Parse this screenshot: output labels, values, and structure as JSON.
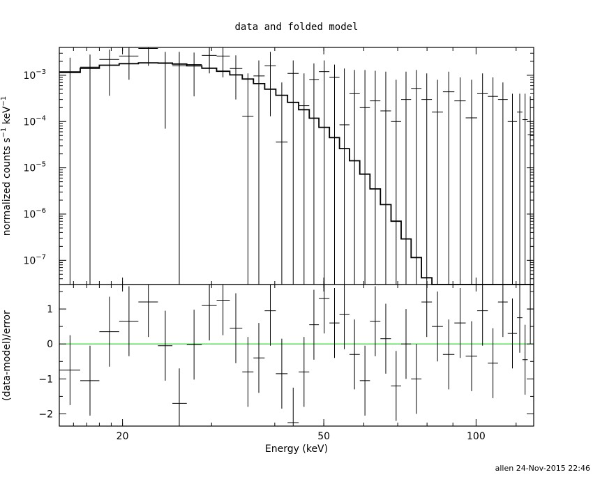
{
  "chart_data": [
    {
      "type": "scatter",
      "panel": "top",
      "title": "data and folded model",
      "ylabel": "normalized counts s^-1 keV^-1",
      "xlabel": "",
      "xscale": "log",
      "yscale": "log",
      "xlim": [
        15,
        130
      ],
      "ylim": [
        3e-08,
        0.004
      ],
      "y_ticks": [
        {
          "value": 1e-07,
          "label": "10",
          "exp": "-7"
        },
        {
          "value": 1e-06,
          "label": "10",
          "exp": "-6"
        },
        {
          "value": 1e-05,
          "label": "10",
          "exp": "-5"
        },
        {
          "value": 0.0001,
          "label": "10",
          "exp": "-4"
        },
        {
          "value": 0.001,
          "label": "10",
          "exp": "-3"
        }
      ],
      "x_ticks": [
        20,
        50,
        100
      ],
      "series": [
        {
          "kind": "data-with-errors",
          "color": "#000000",
          "points": [
            {
              "x": 15.75,
              "xlo": 15.0,
              "xhi": 16.5,
              "y": 0.0012,
              "ylo": 3e-08,
              "yhi": 0.0024
            },
            {
              "x": 17.25,
              "xlo": 16.5,
              "xhi": 18.0,
              "y": 0.0015,
              "ylo": 3e-08,
              "yhi": 0.0028
            },
            {
              "x": 18.85,
              "xlo": 18.0,
              "xhi": 19.7,
              "y": 0.0022,
              "ylo": 0.00036,
              "yhi": 0.0036
            },
            {
              "x": 20.6,
              "xlo": 19.7,
              "xhi": 21.5,
              "y": 0.0026,
              "ylo": 0.0008,
              "yhi": 0.004
            },
            {
              "x": 22.5,
              "xlo": 21.5,
              "xhi": 23.5,
              "y": 0.0038,
              "ylo": 0.0016,
              "yhi": 0.006
            },
            {
              "x": 24.3,
              "xlo": 23.5,
              "xhi": 25.1,
              "y": 0.0018,
              "ylo": 7e-05,
              "yhi": 0.0032
            },
            {
              "x": 25.9,
              "xlo": 25.1,
              "xhi": 26.8,
              "y": 0.0016,
              "ylo": 3e-08,
              "yhi": 0.0032
            },
            {
              "x": 27.7,
              "xlo": 26.8,
              "xhi": 28.7,
              "y": 0.0017,
              "ylo": 0.00035,
              "yhi": 0.0031
            },
            {
              "x": 29.7,
              "xlo": 28.7,
              "xhi": 30.7,
              "y": 0.0027,
              "ylo": 0.0011,
              "yhi": 0.0045
            },
            {
              "x": 31.6,
              "xlo": 30.7,
              "xhi": 32.6,
              "y": 0.0026,
              "ylo": 0.0009,
              "yhi": 0.0045
            },
            {
              "x": 33.5,
              "xlo": 32.6,
              "xhi": 34.5,
              "y": 0.0014,
              "ylo": 0.0003,
              "yhi": 0.0027
            },
            {
              "x": 35.4,
              "xlo": 34.5,
              "xhi": 36.3,
              "y": 0.00013,
              "ylo": 3e-08,
              "yhi": 0.0011
            },
            {
              "x": 37.2,
              "xlo": 36.3,
              "xhi": 38.2,
              "y": 0.00097,
              "ylo": 3e-08,
              "yhi": 0.0021
            },
            {
              "x": 39.2,
              "xlo": 38.2,
              "xhi": 40.2,
              "y": 0.0016,
              "ylo": 0.00013,
              "yhi": 0.0032
            },
            {
              "x": 41.3,
              "xlo": 40.2,
              "xhi": 42.4,
              "y": 3.6e-05,
              "ylo": 3e-08,
              "yhi": 0.0007
            },
            {
              "x": 43.5,
              "xlo": 42.4,
              "xhi": 44.6,
              "y": 0.0011,
              "ylo": 3e-08,
              "yhi": 0.0021
            },
            {
              "x": 45.7,
              "xlo": 44.6,
              "xhi": 46.8,
              "y": 0.00022,
              "ylo": 3e-08,
              "yhi": 0.0011
            },
            {
              "x": 47.8,
              "xlo": 46.8,
              "xhi": 48.9,
              "y": 0.0008,
              "ylo": 3e-08,
              "yhi": 0.0018
            },
            {
              "x": 50.1,
              "xlo": 48.9,
              "xhi": 51.3,
              "y": 0.0012,
              "ylo": 3e-08,
              "yhi": 0.0021
            },
            {
              "x": 52.5,
              "xlo": 51.3,
              "xhi": 53.7,
              "y": 0.0009,
              "ylo": 3e-08,
              "yhi": 0.0017
            },
            {
              "x": 54.9,
              "xlo": 53.7,
              "xhi": 56.2,
              "y": 8.5e-05,
              "ylo": 3e-08,
              "yhi": 0.0014
            },
            {
              "x": 57.5,
              "xlo": 56.2,
              "xhi": 58.9,
              "y": 0.0004,
              "ylo": 3e-08,
              "yhi": 0.0013
            },
            {
              "x": 60.3,
              "xlo": 58.9,
              "xhi": 61.7,
              "y": 0.0002,
              "ylo": 3e-08,
              "yhi": 0.0013
            },
            {
              "x": 63.2,
              "xlo": 61.7,
              "xhi": 64.7,
              "y": 0.00028,
              "ylo": 3e-08,
              "yhi": 0.00125
            },
            {
              "x": 66.3,
              "xlo": 64.7,
              "xhi": 67.9,
              "y": 0.00017,
              "ylo": 3e-08,
              "yhi": 0.0012
            },
            {
              "x": 69.5,
              "xlo": 67.9,
              "xhi": 71.1,
              "y": 0.0001,
              "ylo": 3e-08,
              "yhi": 0.0008
            },
            {
              "x": 72.7,
              "xlo": 71.1,
              "xhi": 74.4,
              "y": 0.0003,
              "ylo": 3e-08,
              "yhi": 0.0012
            },
            {
              "x": 76.2,
              "xlo": 74.4,
              "xhi": 78.0,
              "y": 0.00052,
              "ylo": 3e-08,
              "yhi": 0.0013
            },
            {
              "x": 79.9,
              "xlo": 78.0,
              "xhi": 81.8,
              "y": 0.0003,
              "ylo": 3e-08,
              "yhi": 0.0011
            },
            {
              "x": 83.9,
              "xlo": 81.8,
              "xhi": 86.0,
              "y": 0.00016,
              "ylo": 3e-08,
              "yhi": 0.0008
            },
            {
              "x": 88.3,
              "xlo": 86.0,
              "xhi": 90.6,
              "y": 0.00044,
              "ylo": 3e-08,
              "yhi": 0.0012
            },
            {
              "x": 93.0,
              "xlo": 90.6,
              "xhi": 95.4,
              "y": 0.00028,
              "ylo": 3e-08,
              "yhi": 0.0009
            },
            {
              "x": 98.0,
              "xlo": 95.4,
              "xhi": 100.5,
              "y": 0.00012,
              "ylo": 3e-08,
              "yhi": 0.0008
            },
            {
              "x": 103.0,
              "xlo": 100.5,
              "xhi": 105.5,
              "y": 0.0004,
              "ylo": 3e-08,
              "yhi": 0.0011
            },
            {
              "x": 108.0,
              "xlo": 105.5,
              "xhi": 110.5,
              "y": 0.00035,
              "ylo": 3e-08,
              "yhi": 0.0009
            },
            {
              "x": 113.0,
              "xlo": 110.5,
              "xhi": 115.5,
              "y": 0.0003,
              "ylo": 3e-08,
              "yhi": 0.0007
            },
            {
              "x": 118.0,
              "xlo": 115.5,
              "xhi": 120.5,
              "y": 0.0001,
              "ylo": 3e-08,
              "yhi": 0.0004
            },
            {
              "x": 122.0,
              "xlo": 120.5,
              "xhi": 123.5,
              "y": 0.00016,
              "ylo": 3e-08,
              "yhi": 0.0004
            },
            {
              "x": 125.0,
              "xlo": 123.5,
              "xhi": 126.5,
              "y": 0.00011,
              "ylo": 3e-08,
              "yhi": 0.0004
            },
            {
              "x": 128.0,
              "xlo": 126.5,
              "xhi": 130.0,
              "y": 5.2e-05,
              "ylo": 3e-08,
              "yhi": 0.00035
            }
          ]
        },
        {
          "kind": "model-step",
          "color": "#000000",
          "edges": [
            15.0,
            16.5,
            18.0,
            19.7,
            21.5,
            23.5,
            25.1,
            26.8,
            28.7,
            30.7,
            32.6,
            34.5,
            36.3,
            38.2,
            40.2,
            42.4,
            44.6,
            46.8,
            48.9,
            51.3,
            53.7,
            56.2,
            58.9,
            61.7,
            64.7,
            67.9,
            71.1,
            74.4,
            78.0,
            81.8,
            86.0,
            90.6,
            95.4,
            100.5,
            105.5,
            110.5,
            115.5,
            120.5,
            123.5,
            126.5,
            130.0
          ],
          "values": [
            0.00115,
            0.00142,
            0.00165,
            0.00178,
            0.00186,
            0.00184,
            0.00175,
            0.0016,
            0.00142,
            0.00122,
            0.00102,
            0.00083,
            0.00066,
            0.0005,
            0.00037,
            0.00026,
            0.00018,
            0.000118,
            7.5e-05,
            4.5e-05,
            2.6e-05,
            1.42e-05,
            7.3e-06,
            3.5e-06,
            1.6e-06,
            7e-07,
            2.9e-07,
            1.15e-07,
            4.2e-08,
            3e-08,
            3e-08,
            3e-08,
            3e-08,
            3e-08,
            3e-08,
            3e-08,
            3e-08,
            3e-08,
            3e-08,
            3e-08
          ]
        }
      ]
    },
    {
      "type": "scatter",
      "panel": "bottom",
      "ylabel": "(data-model)/error",
      "xlabel": "Energy (keV)",
      "xscale": "log",
      "xlim": [
        15,
        130
      ],
      "ylim": [
        -2.35,
        1.7
      ],
      "y_ticks": [
        -2,
        -1,
        0,
        1
      ],
      "x_ticks": [
        20,
        50,
        100
      ],
      "zero_line_color": "#22cc22",
      "series": [
        {
          "kind": "residuals",
          "color": "#000000",
          "points": [
            {
              "x": 15.75,
              "xlo": 15.0,
              "xhi": 16.5,
              "y": -0.75,
              "ylo": -1.75,
              "yhi": 0.25
            },
            {
              "x": 17.25,
              "xlo": 16.5,
              "xhi": 18.0,
              "y": -1.05,
              "ylo": -2.05,
              "yhi": -0.05
            },
            {
              "x": 18.85,
              "xlo": 18.0,
              "xhi": 19.7,
              "y": 0.35,
              "ylo": -0.65,
              "yhi": 1.35
            },
            {
              "x": 20.6,
              "xlo": 19.7,
              "xhi": 21.5,
              "y": 0.65,
              "ylo": -0.35,
              "yhi": 1.65
            },
            {
              "x": 22.5,
              "xlo": 21.5,
              "xhi": 23.5,
              "y": 1.2,
              "ylo": 0.2,
              "yhi": 2.2
            },
            {
              "x": 24.3,
              "xlo": 23.5,
              "xhi": 25.1,
              "y": -0.05,
              "ylo": -1.05,
              "yhi": 0.95
            },
            {
              "x": 25.9,
              "xlo": 25.1,
              "xhi": 26.8,
              "y": -1.7,
              "ylo": -2.7,
              "yhi": -0.7
            },
            {
              "x": 27.7,
              "xlo": 26.8,
              "xhi": 28.7,
              "y": -0.02,
              "ylo": -1.02,
              "yhi": 0.98
            },
            {
              "x": 29.7,
              "xlo": 28.7,
              "xhi": 30.7,
              "y": 1.1,
              "ylo": 0.1,
              "yhi": 2.1
            },
            {
              "x": 31.6,
              "xlo": 30.7,
              "xhi": 32.6,
              "y": 1.25,
              "ylo": 0.25,
              "yhi": 2.25
            },
            {
              "x": 33.5,
              "xlo": 32.6,
              "xhi": 34.5,
              "y": 0.45,
              "ylo": -0.55,
              "yhi": 1.45
            },
            {
              "x": 35.4,
              "xlo": 34.5,
              "xhi": 36.3,
              "y": -0.8,
              "ylo": -1.8,
              "yhi": 0.2
            },
            {
              "x": 37.2,
              "xlo": 36.3,
              "xhi": 38.2,
              "y": -0.4,
              "ylo": -1.4,
              "yhi": 0.6
            },
            {
              "x": 39.2,
              "xlo": 38.2,
              "xhi": 40.2,
              "y": 0.95,
              "ylo": -0.05,
              "yhi": 1.95
            },
            {
              "x": 41.3,
              "xlo": 40.2,
              "xhi": 42.4,
              "y": -0.85,
              "ylo": -1.85,
              "yhi": 0.15
            },
            {
              "x": 43.5,
              "xlo": 42.4,
              "xhi": 44.6,
              "y": -2.25,
              "ylo": -3.25,
              "yhi": -1.25
            },
            {
              "x": 45.7,
              "xlo": 44.6,
              "xhi": 46.8,
              "y": -0.8,
              "ylo": -1.8,
              "yhi": 0.2
            },
            {
              "x": 47.8,
              "xlo": 46.8,
              "xhi": 48.9,
              "y": 0.55,
              "ylo": -0.45,
              "yhi": 1.55
            },
            {
              "x": 50.1,
              "xlo": 48.9,
              "xhi": 51.3,
              "y": 1.3,
              "ylo": 0.3,
              "yhi": 2.3
            },
            {
              "x": 52.5,
              "xlo": 51.3,
              "xhi": 53.7,
              "y": 0.6,
              "ylo": -0.4,
              "yhi": 1.6
            },
            {
              "x": 54.9,
              "xlo": 53.7,
              "xhi": 56.2,
              "y": 0.85,
              "ylo": -0.15,
              "yhi": 1.85
            },
            {
              "x": 57.5,
              "xlo": 56.2,
              "xhi": 58.9,
              "y": -0.3,
              "ylo": -1.3,
              "yhi": 0.7
            },
            {
              "x": 60.3,
              "xlo": 58.9,
              "xhi": 61.7,
              "y": -1.05,
              "ylo": -2.05,
              "yhi": -0.05
            },
            {
              "x": 63.2,
              "xlo": 61.7,
              "xhi": 64.7,
              "y": 0.65,
              "ylo": -0.35,
              "yhi": 1.65
            },
            {
              "x": 66.3,
              "xlo": 64.7,
              "xhi": 67.9,
              "y": 0.15,
              "ylo": -0.85,
              "yhi": 1.15
            },
            {
              "x": 69.5,
              "xlo": 67.9,
              "xhi": 71.1,
              "y": -1.2,
              "ylo": -2.2,
              "yhi": -0.2
            },
            {
              "x": 72.7,
              "xlo": 71.1,
              "xhi": 74.4,
              "y": 0.0,
              "ylo": -1.0,
              "yhi": 1.0
            },
            {
              "x": 76.2,
              "xlo": 74.4,
              "xhi": 78.0,
              "y": -1.0,
              "ylo": -2.0,
              "yhi": 0.0
            },
            {
              "x": 79.9,
              "xlo": 78.0,
              "xhi": 81.8,
              "y": 1.2,
              "ylo": 0.2,
              "yhi": 2.2
            },
            {
              "x": 83.9,
              "xlo": 81.8,
              "xhi": 86.0,
              "y": 0.5,
              "ylo": -0.5,
              "yhi": 1.5
            },
            {
              "x": 88.3,
              "xlo": 86.0,
              "xhi": 90.6,
              "y": -0.3,
              "ylo": -1.3,
              "yhi": 0.7
            },
            {
              "x": 93.0,
              "xlo": 90.6,
              "xhi": 95.4,
              "y": 0.6,
              "ylo": -0.4,
              "yhi": 1.6
            },
            {
              "x": 98.0,
              "xlo": 95.4,
              "xhi": 100.5,
              "y": -0.35,
              "ylo": -1.35,
              "yhi": 0.65
            },
            {
              "x": 103.0,
              "xlo": 100.5,
              "xhi": 105.5,
              "y": 0.95,
              "ylo": -0.05,
              "yhi": 1.95
            },
            {
              "x": 108.0,
              "xlo": 105.5,
              "xhi": 110.5,
              "y": -0.55,
              "ylo": -1.55,
              "yhi": 0.45
            },
            {
              "x": 113.0,
              "xlo": 110.5,
              "xhi": 115.5,
              "y": 1.2,
              "ylo": 0.2,
              "yhi": 2.2
            },
            {
              "x": 118.0,
              "xlo": 115.5,
              "xhi": 120.5,
              "y": 0.3,
              "ylo": -0.7,
              "yhi": 1.3
            },
            {
              "x": 122.0,
              "xlo": 120.5,
              "xhi": 123.5,
              "y": 0.75,
              "ylo": -0.25,
              "yhi": 1.75
            },
            {
              "x": 125.0,
              "xlo": 123.5,
              "xhi": 126.5,
              "y": -0.45,
              "ylo": -1.45,
              "yhi": 0.55
            },
            {
              "x": 128.0,
              "xlo": 126.5,
              "xhi": 130.0,
              "y": 1.0,
              "ylo": 0.0,
              "yhi": 2.0
            }
          ]
        }
      ]
    }
  ],
  "footer": "allen 24-Nov-2015 22:46"
}
